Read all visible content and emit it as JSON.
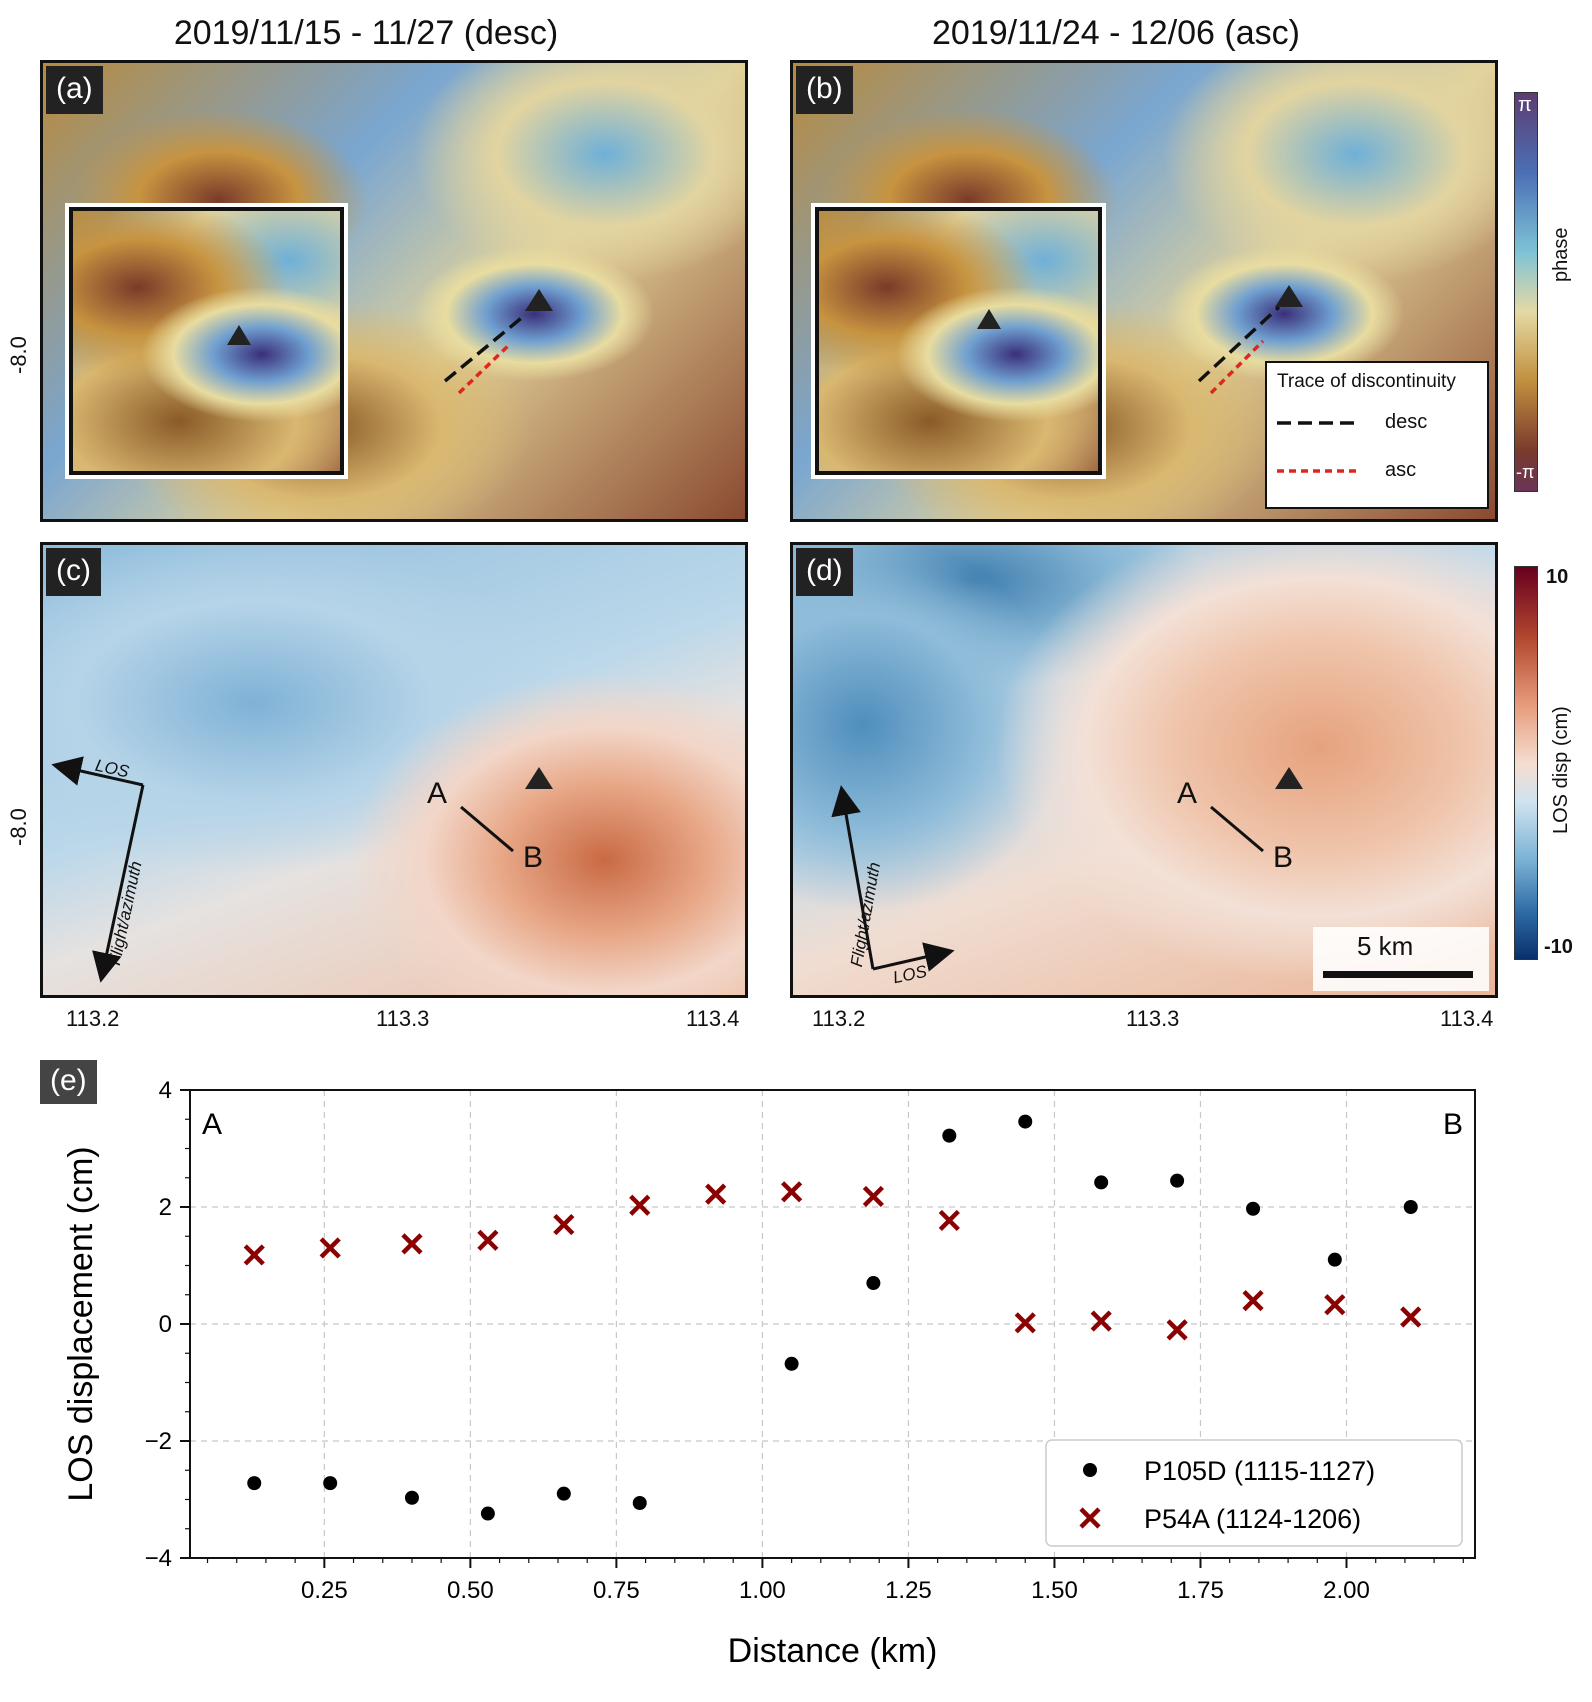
{
  "titles": {
    "left": "2019/11/15 - 11/27 (desc)",
    "right": "2019/11/24 - 12/06 (asc)"
  },
  "panel_labels": {
    "a": "(a)",
    "b": "(b)",
    "c": "(c)",
    "d": "(d)",
    "e": "(e)"
  },
  "map_axes": {
    "lat_tick": "-8.0",
    "lon_ticks": [
      "113.2",
      "113.3",
      "113.4"
    ]
  },
  "discontinuity_legend": {
    "title": "Trace of discontinuity",
    "desc_label": "desc",
    "asc_label": "asc",
    "desc_color": "#111111",
    "asc_color": "#e0261f"
  },
  "phase_colorbar": {
    "top": "π",
    "bottom": "-π",
    "label": "phase"
  },
  "disp_colorbar": {
    "top": "10",
    "bottom": "-10",
    "label": "LOS disp (cm)"
  },
  "profile": {
    "start": "A",
    "end": "B"
  },
  "arrows": {
    "los": "LOS",
    "flight": "Flight/azimuth"
  },
  "scale_bar": "5 km",
  "chart_data": {
    "type": "scatter",
    "xlabel": "Distance (km)",
    "ylabel": "LOS displacement (cm)",
    "xlim": [
      0.02,
      2.22
    ],
    "ylim": [
      -4,
      4
    ],
    "xticks": [
      "0.25",
      "0.50",
      "0.75",
      "1.00",
      "1.25",
      "1.50",
      "1.75",
      "2.00"
    ],
    "xtick_values": [
      0.25,
      0.5,
      0.75,
      1.0,
      1.25,
      1.5,
      1.75,
      2.0
    ],
    "yticks": [
      "−4",
      "−2",
      "0",
      "2",
      "4"
    ],
    "ytick_values": [
      -4,
      -2,
      0,
      2,
      4
    ],
    "grid": true,
    "legend_position": "bottom-right",
    "corner_labels": {
      "left": "A",
      "right": "B"
    },
    "series": [
      {
        "name": "P105D (1115-1127)",
        "marker": "circle",
        "color": "#000000",
        "x": [
          0.13,
          0.26,
          0.4,
          0.53,
          0.66,
          0.79,
          1.05,
          1.19,
          1.32,
          1.45,
          1.58,
          1.71,
          1.84,
          1.98,
          2.11
        ],
        "y": [
          -2.72,
          -2.72,
          -2.97,
          -3.24,
          -2.9,
          -3.06,
          -0.68,
          0.7,
          3.22,
          3.46,
          2.42,
          2.45,
          1.97,
          1.1,
          2.0
        ]
      },
      {
        "name": "P54A (1124-1206)",
        "marker": "x",
        "color": "#8b0000",
        "x": [
          0.13,
          0.26,
          0.4,
          0.53,
          0.66,
          0.79,
          0.92,
          1.05,
          1.19,
          1.32,
          1.45,
          1.58,
          1.71,
          1.84,
          1.98,
          2.11
        ],
        "y": [
          1.18,
          1.3,
          1.37,
          1.43,
          1.7,
          2.03,
          2.22,
          2.26,
          2.18,
          1.77,
          0.02,
          0.05,
          -0.1,
          0.4,
          0.33,
          0.12
        ]
      }
    ]
  }
}
